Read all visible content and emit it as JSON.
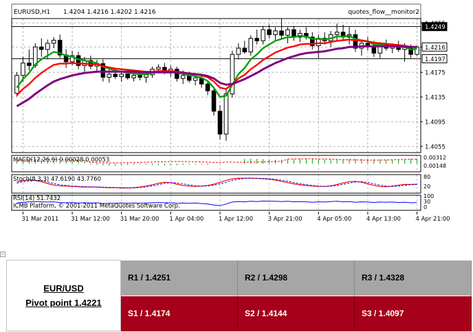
{
  "chart_data": {
    "type": "candlestick",
    "header": {
      "symbol_tf": "EURUSD,H1",
      "ohlc": "1.4204 1.4216 1.4202 1.4216",
      "indicator_name": "quotes_flow__monitor2"
    },
    "price_axis": {
      "ylim": [
        1.4045,
        1.4262
      ],
      "tick_labels": [
        "1.4255",
        "1.4216",
        "1.4175",
        "1.4135",
        "1.4095",
        "1.4055"
      ],
      "tick_values": [
        1.4255,
        1.4216,
        1.4175,
        1.4135,
        1.4095,
        1.4055
      ],
      "highlight_labels": [
        {
          "text": "1.4249",
          "value": 1.4249,
          "style": "dark"
        },
        {
          "text": "1.4216",
          "value": 1.4216,
          "style": "light"
        },
        {
          "text": "1.4197",
          "value": 1.4197,
          "style": "light"
        }
      ]
    },
    "horizontal_lines": [
      1.4249,
      1.4197
    ],
    "x_ticks": [
      "31 Mar 2011",
      "31 Mar 12:00",
      "31 Mar 20:00",
      "1 Apr 04:00",
      "1 Apr 12:00",
      "3 Apr 21:00",
      "4 Apr 05:00",
      "4 Apr 13:00",
      "4 Apr 21:00"
    ],
    "x_tick_bars": [
      1,
      9,
      17,
      25,
      33,
      41,
      49,
      57,
      65
    ],
    "candles": [
      [
        1.4141,
        1.4175,
        1.4136,
        1.417
      ],
      [
        1.417,
        1.42,
        1.416,
        1.419
      ],
      [
        1.419,
        1.4212,
        1.4178,
        1.4186
      ],
      [
        1.4186,
        1.4222,
        1.4182,
        1.4216
      ],
      [
        1.4216,
        1.423,
        1.42,
        1.4212
      ],
      [
        1.4212,
        1.4228,
        1.4196,
        1.4222
      ],
      [
        1.4222,
        1.4232,
        1.4214,
        1.4227
      ],
      [
        1.4227,
        1.4236,
        1.4198,
        1.4203
      ],
      [
        1.4203,
        1.4212,
        1.4182,
        1.4192
      ],
      [
        1.4192,
        1.421,
        1.4186,
        1.4202
      ],
      [
        1.4202,
        1.4208,
        1.418,
        1.4186
      ],
      [
        1.4186,
        1.42,
        1.4176,
        1.4194
      ],
      [
        1.4194,
        1.4202,
        1.418,
        1.4185
      ],
      [
        1.4185,
        1.4195,
        1.4174,
        1.4189
      ],
      [
        1.4189,
        1.4196,
        1.416,
        1.4167
      ],
      [
        1.4167,
        1.418,
        1.4158,
        1.4172
      ],
      [
        1.4172,
        1.418,
        1.4164,
        1.4168
      ],
      [
        1.4168,
        1.4178,
        1.416,
        1.4172
      ],
      [
        1.4172,
        1.418,
        1.4163,
        1.4166
      ],
      [
        1.4166,
        1.4176,
        1.416,
        1.417
      ],
      [
        1.417,
        1.4178,
        1.4162,
        1.4167
      ],
      [
        1.4167,
        1.4175,
        1.4158,
        1.4171
      ],
      [
        1.4171,
        1.4184,
        1.4166,
        1.418
      ],
      [
        1.418,
        1.4188,
        1.4174,
        1.4183
      ],
      [
        1.4183,
        1.419,
        1.4172,
        1.4176
      ],
      [
        1.4176,
        1.4186,
        1.4168,
        1.418
      ],
      [
        1.418,
        1.4184,
        1.416,
        1.4165
      ],
      [
        1.4165,
        1.4178,
        1.4156,
        1.417
      ],
      [
        1.417,
        1.4176,
        1.4158,
        1.4162
      ],
      [
        1.4162,
        1.4172,
        1.4154,
        1.4166
      ],
      [
        1.4166,
        1.417,
        1.415,
        1.4156
      ],
      [
        1.4156,
        1.416,
        1.4138,
        1.4145
      ],
      [
        1.4145,
        1.415,
        1.4105,
        1.4112
      ],
      [
        1.4112,
        1.4122,
        1.4066,
        1.4075
      ],
      [
        1.4075,
        1.4148,
        1.4064,
        1.414
      ],
      [
        1.414,
        1.421,
        1.4134,
        1.4204
      ],
      [
        1.4204,
        1.4222,
        1.4196,
        1.4214
      ],
      [
        1.4214,
        1.4226,
        1.4205,
        1.4208
      ],
      [
        1.4208,
        1.4235,
        1.4202,
        1.423
      ],
      [
        1.423,
        1.4244,
        1.422,
        1.4226
      ],
      [
        1.4226,
        1.425,
        1.422,
        1.4244
      ],
      [
        1.4244,
        1.4252,
        1.423,
        1.4236
      ],
      [
        1.4236,
        1.4248,
        1.4226,
        1.4242
      ],
      [
        1.4242,
        1.4262,
        1.423,
        1.4235
      ],
      [
        1.4235,
        1.4248,
        1.4222,
        1.4244
      ],
      [
        1.4244,
        1.425,
        1.4226,
        1.4232
      ],
      [
        1.4232,
        1.4244,
        1.4224,
        1.4238
      ],
      [
        1.4238,
        1.4248,
        1.4228,
        1.4232
      ],
      [
        1.4232,
        1.424,
        1.4212,
        1.4218
      ],
      [
        1.4218,
        1.4236,
        1.4198,
        1.423
      ],
      [
        1.423,
        1.424,
        1.422,
        1.4226
      ],
      [
        1.4226,
        1.4242,
        1.4216,
        1.4236
      ],
      [
        1.4236,
        1.4254,
        1.4226,
        1.424
      ],
      [
        1.424,
        1.4252,
        1.4228,
        1.4232
      ],
      [
        1.4232,
        1.4248,
        1.422,
        1.4236
      ],
      [
        1.4236,
        1.4244,
        1.4208,
        1.4214
      ],
      [
        1.4214,
        1.4228,
        1.4202,
        1.4222
      ],
      [
        1.4222,
        1.4232,
        1.421,
        1.4218
      ],
      [
        1.4218,
        1.4226,
        1.42,
        1.4206
      ],
      [
        1.4206,
        1.4224,
        1.4198,
        1.422
      ],
      [
        1.422,
        1.4228,
        1.421,
        1.4214
      ],
      [
        1.4214,
        1.4222,
        1.4206,
        1.4218
      ],
      [
        1.4218,
        1.4226,
        1.4208,
        1.4212
      ],
      [
        1.4212,
        1.4222,
        1.4192,
        1.4216
      ],
      [
        1.4216,
        1.422,
        1.4198,
        1.4204
      ],
      [
        1.4204,
        1.4218,
        1.4202,
        1.4216
      ]
    ],
    "series": [
      {
        "color": "#00a000",
        "values": [
          1.415,
          1.4164,
          1.4174,
          1.4188,
          1.4196,
          1.4202,
          1.4208,
          1.4206,
          1.4202,
          1.42,
          1.4196,
          1.4194,
          1.4192,
          1.419,
          1.4184,
          1.4181,
          1.4178,
          1.4176,
          1.4174,
          1.4173,
          1.4172,
          1.4172,
          1.4174,
          1.4176,
          1.4176,
          1.4177,
          1.4174,
          1.4173,
          1.417,
          1.4169,
          1.4166,
          1.4161,
          1.415,
          1.4135,
          1.4137,
          1.4155,
          1.4172,
          1.4182,
          1.4196,
          1.4204,
          1.4214,
          1.422,
          1.4226,
          1.4229,
          1.4232,
          1.4232,
          1.4234,
          1.4233,
          1.4229,
          1.4229,
          1.4228,
          1.423,
          1.4233,
          1.4233,
          1.4234,
          1.4229,
          1.4227,
          1.4225,
          1.422,
          1.422,
          1.4218,
          1.4218,
          1.4216,
          1.4216,
          1.4212,
          1.4213
        ]
      },
      {
        "color": "#ff0000",
        "values": [
          1.4138,
          1.4148,
          1.4156,
          1.4166,
          1.4174,
          1.4181,
          1.4187,
          1.4189,
          1.4189,
          1.419,
          1.4189,
          1.4189,
          1.4188,
          1.4188,
          1.4185,
          1.4183,
          1.4181,
          1.418,
          1.4179,
          1.4178,
          1.4177,
          1.4176,
          1.4176,
          1.4177,
          1.4177,
          1.4177,
          1.4176,
          1.4175,
          1.4173,
          1.4172,
          1.417,
          1.4167,
          1.416,
          1.415,
          1.4148,
          1.4156,
          1.4165,
          1.4171,
          1.418,
          1.4187,
          1.4195,
          1.4201,
          1.4207,
          1.4211,
          1.4215,
          1.4217,
          1.422,
          1.4221,
          1.4221,
          1.4222,
          1.4222,
          1.4224,
          1.4226,
          1.4227,
          1.4228,
          1.4227,
          1.4226,
          1.4225,
          1.4223,
          1.4222,
          1.4221,
          1.422,
          1.4219,
          1.4218,
          1.4216,
          1.4216
        ]
      },
      {
        "color": "#800080",
        "values": [
          1.412,
          1.4126,
          1.4132,
          1.414,
          1.4147,
          1.4154,
          1.416,
          1.4164,
          1.4167,
          1.417,
          1.4172,
          1.4174,
          1.4175,
          1.4176,
          1.4176,
          1.4176,
          1.4176,
          1.4176,
          1.4176,
          1.4176,
          1.4175,
          1.4175,
          1.4175,
          1.4175,
          1.4175,
          1.4175,
          1.4175,
          1.4174,
          1.4173,
          1.4172,
          1.4171,
          1.4169,
          1.4165,
          1.4158,
          1.4155,
          1.4156,
          1.416,
          1.4164,
          1.4169,
          1.4174,
          1.418,
          1.4185,
          1.419,
          1.4194,
          1.4198,
          1.4201,
          1.4204,
          1.4206,
          1.4207,
          1.4208,
          1.4209,
          1.4211,
          1.4213,
          1.4214,
          1.4216,
          1.4216,
          1.4217,
          1.4217,
          1.4217,
          1.4217,
          1.4217,
          1.4217,
          1.4217,
          1.4216,
          1.4216,
          1.4216
        ]
      }
    ],
    "subpanels": [
      {
        "name": "macd",
        "label": "MACD(12,26,9) 0.00028 0.00053",
        "axis_labels": [
          "0.00312",
          "0.00148"
        ]
      },
      {
        "name": "stoch",
        "label": "Stoch(8,3,3) 47.6190 43.7760",
        "axis_labels": [
          "80",
          "20"
        ],
        "main": [
          62,
          70,
          76,
          72,
          64,
          52,
          42,
          38,
          36,
          34,
          32,
          30,
          30,
          30,
          28,
          26,
          26,
          24,
          24,
          26,
          30,
          36,
          44,
          54,
          60,
          58,
          48,
          40,
          36,
          34,
          36,
          40,
          48,
          60,
          72,
          82,
          86,
          86,
          86,
          84,
          82,
          80,
          74,
          66,
          58,
          50,
          44,
          40,
          36,
          34,
          34,
          38,
          46,
          56,
          64,
          66,
          60,
          50,
          40,
          34,
          32,
          36,
          42,
          46,
          46,
          48
        ],
        "signal": [
          55,
          62,
          68,
          72,
          70,
          62,
          52,
          44,
          40,
          36,
          34,
          32,
          31,
          30,
          29,
          28,
          27,
          26,
          25,
          25,
          27,
          31,
          37,
          45,
          53,
          58,
          56,
          50,
          43,
          38,
          36,
          37,
          42,
          50,
          60,
          72,
          80,
          84,
          86,
          86,
          84,
          82,
          79,
          73,
          66,
          58,
          51,
          45,
          40,
          36,
          34,
          35,
          40,
          47,
          55,
          62,
          64,
          59,
          50,
          42,
          35,
          33,
          36,
          41,
          45,
          46
        ]
      },
      {
        "name": "rsi",
        "label": "RSI(14) 51.7432",
        "axis_labels": [
          "100",
          "30",
          "0"
        ],
        "values": [
          48,
          54,
          58,
          60,
          58,
          56,
          58,
          52,
          50,
          52,
          48,
          50,
          48,
          50,
          44,
          46,
          46,
          48,
          46,
          48,
          46,
          48,
          50,
          52,
          50,
          50,
          46,
          48,
          46,
          48,
          44,
          40,
          32,
          26,
          40,
          56,
          60,
          58,
          62,
          60,
          64,
          62,
          62,
          60,
          62,
          58,
          60,
          58,
          54,
          58,
          56,
          60,
          62,
          58,
          60,
          54,
          58,
          56,
          52,
          56,
          54,
          56,
          52,
          54,
          50,
          52
        ]
      }
    ],
    "copyright": "ICMB Platform, © 2001-2011 MetaQuotes Software Corp."
  },
  "pivot": {
    "symbol": "EUR/USD",
    "pivot_label": "Pivot point 1.4221",
    "resistance": [
      "R1 / 1.4251",
      "R2 / 1.4298",
      "R3 / 1.4328"
    ],
    "support": [
      "S1 / 1.4174",
      "S2 / 1.4144",
      "S3 / 1.4097"
    ]
  }
}
